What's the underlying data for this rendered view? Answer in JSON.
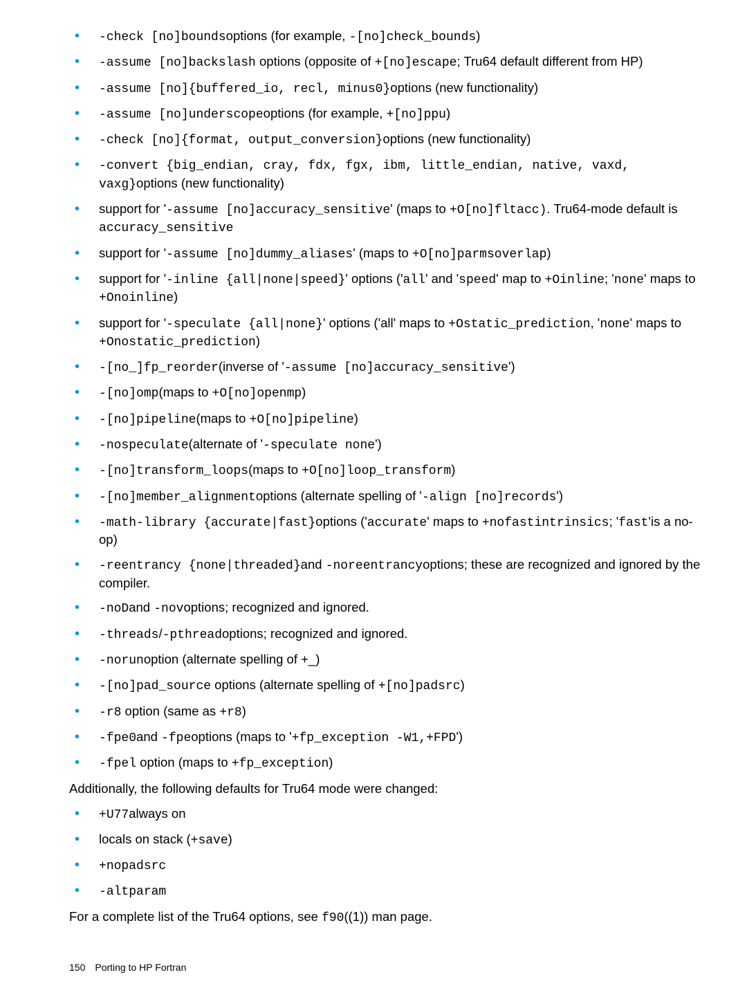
{
  "items1": [
    {
      "id": "i1",
      "html": "<span class='mono'>-check [no]bounds</span>options (for example, <span class='mono'>-[no]check_bounds</span>)"
    },
    {
      "id": "i2",
      "html": "<span class='mono'>-assume [no]backslash</span> options (opposite of <span class='mono'>+[no]escape</span>; Tru64 default different from HP)"
    },
    {
      "id": "i3",
      "html": "<span class='mono'>-assume [no]{buffered_io, recl, minus0}</span>options (new functionality)"
    },
    {
      "id": "i4",
      "html": "<span class='mono'>-assume [no]underscope</span>options (for example, <span class='mono'>+[no]ppu</span>)"
    },
    {
      "id": "i5",
      "html": "<span class='mono'>-check [no]{format, output_conversion}</span>options (new functionality)"
    },
    {
      "id": "i6",
      "html": "<span class='mono'>-convert {big_endian, cray, fdx, fgx, ibm, little_endian, native, vaxd, vaxg}</span>options (new functionality)"
    },
    {
      "id": "i7",
      "html": "support for '<span class='mono'>-assume [no]accuracy_sensitive</span>' (maps to <span class='mono'>+O[no]fltacc)</span>. Tru64-mode default is <span class='mono'>accuracy_sensitive</span>"
    },
    {
      "id": "i8",
      "html": "support for '<span class='mono'>-assume [no]dummy_aliases</span>' (maps to <span class='mono'>+O[no]parmsoverlap</span>)"
    },
    {
      "id": "i9",
      "html": "support for '<span class='mono'>-inline {all|none|speed}</span>' options ('<span class='mono'>all</span>' and '<span class='mono'>speed</span>' map to <span class='mono'>+Oinline</span>; '<span class='mono'>none</span>' maps to <span class='mono'>+Onoinline</span>)"
    },
    {
      "id": "i10",
      "html": "support for '<span class='mono'>-speculate {all|none}</span>' options ('all' maps to <span class='mono'>+Ostatic_prediction</span>, '<span class='mono'>none</span>' maps to <span class='mono'>+Onostatic_prediction</span>)"
    },
    {
      "id": "i11",
      "html": "<span class='mono'>-[no_]fp_reorder</span>(inverse of '<span class='mono'>-assume [no]accuracy_sensitive</span>')"
    },
    {
      "id": "i12",
      "html": "<span class='mono'>-[no]omp</span>(maps to <span class='mono'>+O[no]openmp</span>)"
    },
    {
      "id": "i13",
      "html": "<span class='mono'>-[no]pipeline</span>(maps to <span class='mono'>+O[no]pipeline</span>)"
    },
    {
      "id": "i14",
      "html": "<span class='mono'>-nospeculate</span>(alternate of '<span class='mono'>-speculate none</span>')"
    },
    {
      "id": "i15",
      "html": "<span class='mono'>-[no]transform_loops</span>(maps to <span class='mono'>+O[no]loop_transform</span>)"
    },
    {
      "id": "i16",
      "html": "<span class='mono'>-[no]member_alignment</span>options (alternate spelling of '<span class='mono'>-align [no]records</span>')"
    },
    {
      "id": "i17",
      "html": "<span class='mono'>-math-library {accurate|fast}</span>options ('<span class='mono'>accurate</span>' maps to <span class='mono'>+nofastintrinsics</span>; '<span class='mono'>fast</span>'is a no-op)"
    },
    {
      "id": "i18",
      "html": "<span class='mono'>-reentrancy {none|threaded}</span>and <span class='mono'>-noreentrancy</span>options; these are recognized and ignored by the compiler."
    },
    {
      "id": "i19",
      "html": "<span class='mono'>-noD</span>and <span class='mono'>-nov</span>options; recognized and ignored."
    },
    {
      "id": "i20",
      "html": "<span class='mono'>-threads</span>/<span class='mono'>-pthread</span>options; recognized and ignored."
    },
    {
      "id": "i21",
      "html": "<span class='mono'>-norun</span>option (alternate spelling of +_)"
    },
    {
      "id": "i22",
      "html": "<span class='mono'>-[no]pad_source</span> options (alternate spelling of <span class='mono'>+[no]padsrc</span>)"
    },
    {
      "id": "i23",
      "html": "<span class='mono'>-r8</span> option (same as <span class='mono'>+r8</span>)"
    },
    {
      "id": "i24",
      "html": "<span class='mono'>-fpe0</span>and <span class='mono'>-fpe</span>options (maps to '<span class='mono'>+fp_exception -W1,+FPD</span>')"
    },
    {
      "id": "i25",
      "html": "<span class='mono'>-fpel</span> option (maps to <span class='mono'>+fp_exception</span>)"
    }
  ],
  "midText": "Additionally, the following defaults for Tru64 mode were changed:",
  "items2": [
    {
      "id": "j1",
      "html": "<span class='mono'>+U77</span>always on"
    },
    {
      "id": "j2",
      "html": "locals on stack (<span class='mono'>+save</span>)"
    },
    {
      "id": "j3",
      "html": "<span class='mono'>+nopadsrc</span>"
    },
    {
      "id": "j4",
      "html": "<span class='mono'>-altparam</span>"
    }
  ],
  "endText": "For a complete list of the Tru64 options, see <span class='mono'>f90</span>((1)) man page.",
  "footer": "150 Porting to HP Fortran",
  "colors": {
    "bullet": "#0096d6",
    "text": "#000000",
    "bg": "#ffffff"
  }
}
